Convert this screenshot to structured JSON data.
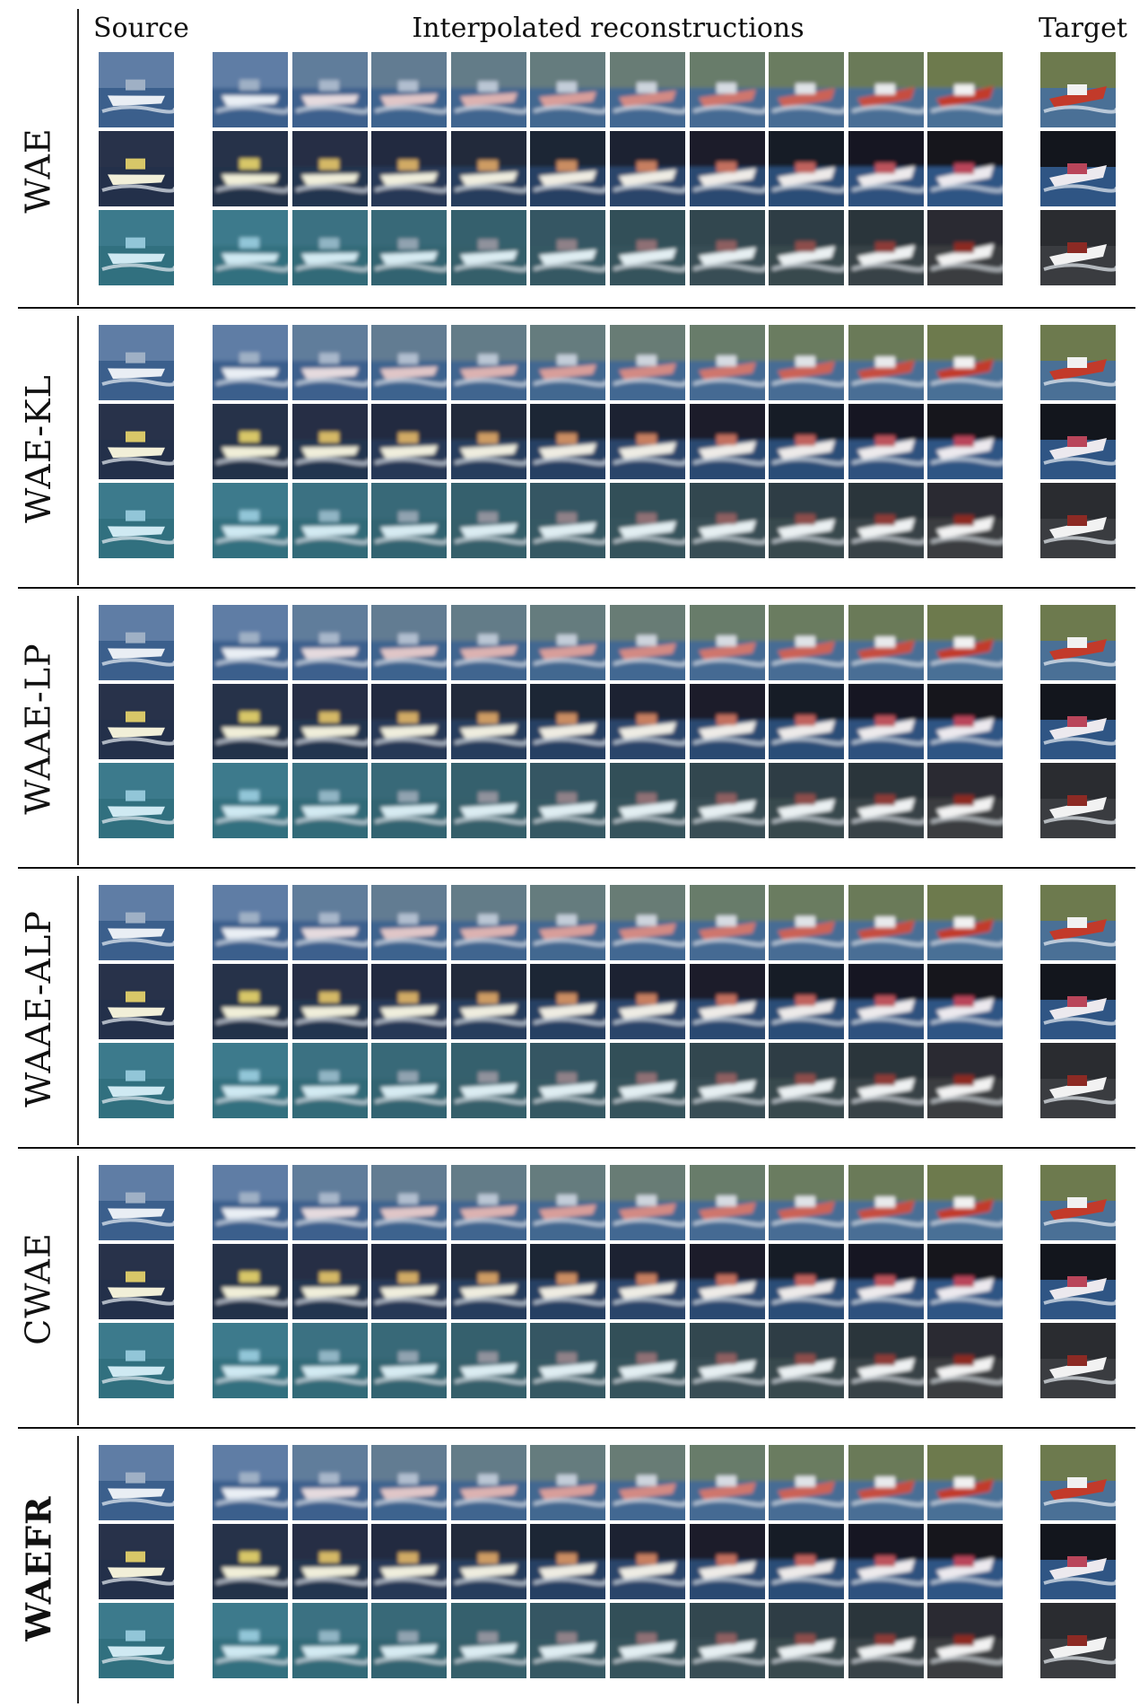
{
  "headers": {
    "source": "Source",
    "interpolated": "Interpolated reconstructions",
    "target": "Target"
  },
  "methods": [
    {
      "name": "WAE",
      "bold": false
    },
    {
      "name": "WAE-KL",
      "bold": false
    },
    {
      "name": "WAAE-LP",
      "bold": false
    },
    {
      "name": "WAAE-ALP",
      "bold": false
    },
    {
      "name": "CWAE",
      "bold": false
    },
    {
      "name": "WAEFR",
      "bold": true
    }
  ],
  "rows": [
    {
      "source": {
        "sky": "#5f7da5",
        "water": "#3b5f8c",
        "hull": "#e9eef4",
        "accent": "#9fb0c5"
      },
      "target": {
        "sky": "#6d7a4e",
        "water": "#4a7096",
        "hull": "#c23a2a",
        "accent": "#f1f1f1"
      }
    },
    {
      "source": {
        "sky": "#28324a",
        "water": "#23304a",
        "hull": "#f1efd8",
        "accent": "#d8c768"
      },
      "target": {
        "sky": "#13161d",
        "water": "#2f5584",
        "hull": "#ece9ee",
        "accent": "#b9455a"
      }
    },
    {
      "source": {
        "sky": "#3c7a8c",
        "water": "#31707f",
        "hull": "#cfe9f2",
        "accent": "#92c6d8"
      },
      "target": {
        "sky": "#2a2c30",
        "water": "#3a3c40",
        "hull": "#f2f2f2",
        "accent": "#8c2a24"
      }
    }
  ],
  "colors": {
    "rule": "#111111",
    "background": "#ffffff"
  }
}
